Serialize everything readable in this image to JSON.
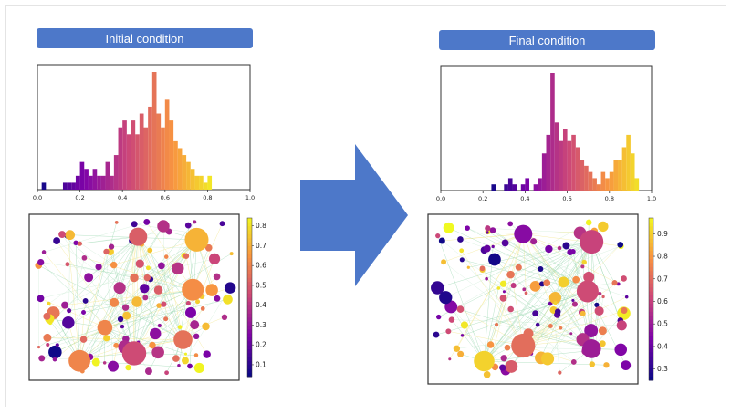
{
  "titles": {
    "left": "Initial condition",
    "right": "Final condition"
  },
  "chart_data": [
    {
      "type": "bar",
      "panel": "initial-histogram",
      "x_ticks": [
        "0.0",
        "0.2",
        "0.4",
        "0.6",
        "0.8",
        "1.0"
      ],
      "xlim": [
        0,
        1
      ],
      "bins_left_edges": [
        0.02,
        0.04,
        0.06,
        0.08,
        0.1,
        0.12,
        0.14,
        0.16,
        0.18,
        0.2,
        0.22,
        0.24,
        0.26,
        0.28,
        0.3,
        0.32,
        0.34,
        0.36,
        0.38,
        0.4,
        0.42,
        0.44,
        0.46,
        0.48,
        0.5,
        0.52,
        0.54,
        0.56,
        0.58,
        0.6,
        0.62,
        0.64,
        0.66,
        0.68,
        0.7,
        0.72,
        0.74,
        0.76,
        0.78,
        0.8
      ],
      "counts": [
        1,
        0,
        0,
        0,
        0,
        1,
        1,
        1,
        2,
        4,
        3,
        2,
        3,
        2,
        2,
        4,
        2,
        5,
        9,
        10,
        8,
        10,
        8,
        11,
        9,
        12,
        17,
        11,
        9,
        13,
        10,
        7,
        6,
        5,
        4,
        3,
        2,
        2,
        1,
        2
      ]
    },
    {
      "type": "bar",
      "panel": "final-histogram",
      "x_ticks": [
        "0.0",
        "0.2",
        "0.4",
        "0.6",
        "0.8",
        "1.0"
      ],
      "xlim": [
        0,
        1
      ],
      "bins_left_edges": [
        0.24,
        0.26,
        0.28,
        0.3,
        0.32,
        0.34,
        0.36,
        0.38,
        0.4,
        0.42,
        0.44,
        0.46,
        0.48,
        0.5,
        0.52,
        0.54,
        0.56,
        0.58,
        0.6,
        0.62,
        0.64,
        0.66,
        0.68,
        0.7,
        0.72,
        0.74,
        0.76,
        0.78,
        0.8,
        0.82,
        0.84,
        0.86,
        0.88,
        0.9,
        0.92
      ],
      "counts": [
        1,
        0,
        0,
        1,
        2,
        1,
        0,
        1,
        2,
        0,
        1,
        2,
        6,
        9,
        19,
        11,
        8,
        10,
        8,
        9,
        7,
        5,
        4,
        3,
        2,
        1,
        3,
        2,
        3,
        5,
        5,
        7,
        9,
        6,
        2
      ]
    },
    {
      "type": "scatter",
      "panel": "initial-network",
      "colorbar_ticks": [
        "0.1",
        "0.2",
        "0.3",
        "0.4",
        "0.5",
        "0.6",
        "0.7",
        "0.8"
      ],
      "colorbar_range": [
        0.04,
        0.84
      ],
      "hubs": [
        {
          "x": 0.52,
          "y": 0.9,
          "v": 0.5
        },
        {
          "x": 0.82,
          "y": 0.88,
          "v": 0.7
        },
        {
          "x": 0.8,
          "y": 0.55,
          "v": 0.62
        },
        {
          "x": 0.35,
          "y": 0.3,
          "v": 0.6
        },
        {
          "x": 0.5,
          "y": 0.13,
          "v": 0.45
        },
        {
          "x": 0.75,
          "y": 0.22,
          "v": 0.55
        },
        {
          "x": 0.22,
          "y": 0.08,
          "v": 0.6
        }
      ]
    },
    {
      "type": "scatter",
      "panel": "final-network",
      "colorbar_ticks": [
        "0.3",
        "0.4",
        "0.5",
        "0.6",
        "0.7",
        "0.8",
        "0.9"
      ],
      "colorbar_range": [
        0.25,
        0.97
      ],
      "hubs": [
        {
          "x": 0.45,
          "y": 0.92,
          "v": 0.45
        },
        {
          "x": 0.8,
          "y": 0.87,
          "v": 0.6
        },
        {
          "x": 0.78,
          "y": 0.55,
          "v": 0.62
        },
        {
          "x": 0.45,
          "y": 0.2,
          "v": 0.7
        },
        {
          "x": 0.25,
          "y": 0.1,
          "v": 0.9
        },
        {
          "x": 0.8,
          "y": 0.18,
          "v": 0.5
        }
      ]
    }
  ]
}
